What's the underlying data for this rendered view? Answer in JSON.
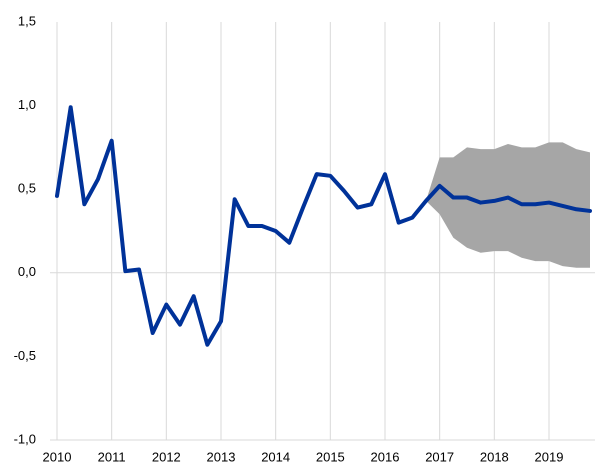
{
  "chart_data": {
    "type": "line",
    "x": [
      2010,
      2010.25,
      2010.5,
      2010.75,
      2011,
      2011.25,
      2011.5,
      2011.75,
      2012,
      2012.25,
      2012.5,
      2012.75,
      2013,
      2013.25,
      2013.5,
      2013.75,
      2014,
      2014.25,
      2014.5,
      2014.75,
      2015,
      2015.25,
      2015.5,
      2015.75,
      2016,
      2016.25,
      2016.5,
      2016.75,
      2017,
      2017.25,
      2017.5,
      2017.75,
      2018,
      2018.25,
      2018.5,
      2018.75,
      2019,
      2019.25,
      2019.5,
      2019.75
    ],
    "series": [
      {
        "color": "#003299",
        "values": [
          0.46,
          0.99,
          0.41,
          0.56,
          0.79,
          0.01,
          0.02,
          -0.36,
          -0.19,
          -0.31,
          -0.14,
          -0.43,
          -0.29,
          0.44,
          0.28,
          0.28,
          0.25,
          0.18,
          0.39,
          0.59,
          0.58,
          0.49,
          0.39,
          0.41,
          0.59,
          0.3,
          0.33,
          0.43,
          0.52,
          0.45,
          0.45,
          0.42,
          0.43,
          0.45,
          0.41,
          0.41,
          0.42,
          0.4,
          0.38,
          0.37
        ]
      }
    ],
    "band": {
      "color": "#a6a6a6",
      "upper": [
        null,
        null,
        null,
        null,
        null,
        null,
        null,
        null,
        null,
        null,
        null,
        null,
        null,
        null,
        null,
        null,
        null,
        null,
        null,
        null,
        null,
        null,
        null,
        null,
        null,
        null,
        null,
        0.43,
        0.69,
        0.69,
        0.75,
        0.74,
        0.74,
        0.77,
        0.75,
        0.75,
        0.78,
        0.78,
        0.74,
        0.72
      ],
      "lower": [
        null,
        null,
        null,
        null,
        null,
        null,
        null,
        null,
        null,
        null,
        null,
        null,
        null,
        null,
        null,
        null,
        null,
        null,
        null,
        null,
        null,
        null,
        null,
        null,
        null,
        null,
        null,
        0.43,
        0.35,
        0.21,
        0.15,
        0.12,
        0.13,
        0.13,
        0.09,
        0.07,
        0.07,
        0.04,
        0.03,
        0.03
      ]
    },
    "xlim": [
      2010,
      2019.75
    ],
    "xticks": [
      2010,
      2011,
      2012,
      2013,
      2014,
      2015,
      2016,
      2017,
      2018,
      2019
    ],
    "ylim": [
      -1.0,
      1.5
    ],
    "yticks": [
      {
        "value": -1.0,
        "label": "-1,0"
      },
      {
        "value": -0.5,
        "label": "-0,5"
      },
      {
        "value": 0.0,
        "label": "0,0"
      },
      {
        "value": 0.5,
        "label": "0,5"
      },
      {
        "value": 1.0,
        "label": "1,0"
      },
      {
        "value": 1.5,
        "label": "1,5"
      }
    ]
  }
}
